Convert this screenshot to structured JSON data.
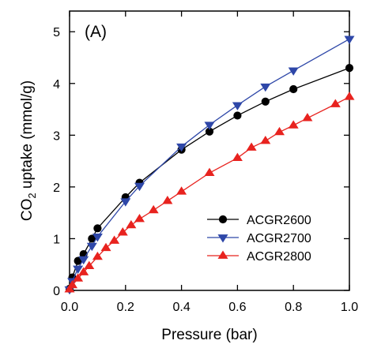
{
  "chart_data": {
    "type": "line",
    "panel_label": "(A)",
    "xlabel": "Pressure (bar)",
    "ylabel_parts": {
      "before": "CO",
      "sub": "2",
      "after": " uptake (mmol/g)"
    },
    "xlim": [
      0,
      1
    ],
    "ylim": [
      0,
      5.4
    ],
    "xticks": [
      0,
      0.2,
      0.4,
      0.6,
      0.8,
      1
    ],
    "xtick_labels": [
      "0.0",
      "0.2",
      "0.4",
      "0.6",
      "0.8",
      "1.0"
    ],
    "yticks": [
      0,
      1,
      2,
      3,
      4,
      5
    ],
    "ytick_labels": [
      "0",
      "1",
      "2",
      "3",
      "4",
      "5"
    ],
    "legend_position": "bottom-right",
    "series": [
      {
        "name": "ACGR2600",
        "color": "#000000",
        "marker": "circle",
        "x": [
          0.0,
          0.01,
          0.03,
          0.05,
          0.08,
          0.1,
          0.2,
          0.25,
          0.4,
          0.5,
          0.6,
          0.7,
          0.8,
          1.0
        ],
        "y": [
          0.03,
          0.25,
          0.57,
          0.7,
          1.0,
          1.2,
          1.8,
          2.08,
          2.72,
          3.07,
          3.38,
          3.65,
          3.89,
          4.3
        ]
      },
      {
        "name": "ACGR2700",
        "color": "#2e47a8",
        "marker": "triangle-down",
        "x": [
          0.0,
          0.01,
          0.03,
          0.05,
          0.08,
          0.1,
          0.2,
          0.25,
          0.4,
          0.5,
          0.6,
          0.7,
          0.8,
          1.0
        ],
        "y": [
          0.02,
          0.18,
          0.42,
          0.6,
          0.86,
          1.04,
          1.72,
          2.02,
          2.78,
          3.2,
          3.58,
          3.94,
          4.25,
          4.86
        ]
      },
      {
        "name": "ACGR2800",
        "color": "#e8231f",
        "marker": "triangle-up",
        "x": [
          0.0,
          0.01,
          0.03,
          0.05,
          0.07,
          0.1,
          0.13,
          0.16,
          0.19,
          0.22,
          0.25,
          0.3,
          0.35,
          0.4,
          0.5,
          0.6,
          0.65,
          0.7,
          0.75,
          0.8,
          0.85,
          0.95,
          1.0
        ],
        "y": [
          0.02,
          0.1,
          0.23,
          0.35,
          0.47,
          0.65,
          0.82,
          0.96,
          1.12,
          1.26,
          1.38,
          1.55,
          1.73,
          1.91,
          2.27,
          2.56,
          2.76,
          2.89,
          3.06,
          3.19,
          3.33,
          3.6,
          3.74
        ]
      }
    ]
  }
}
